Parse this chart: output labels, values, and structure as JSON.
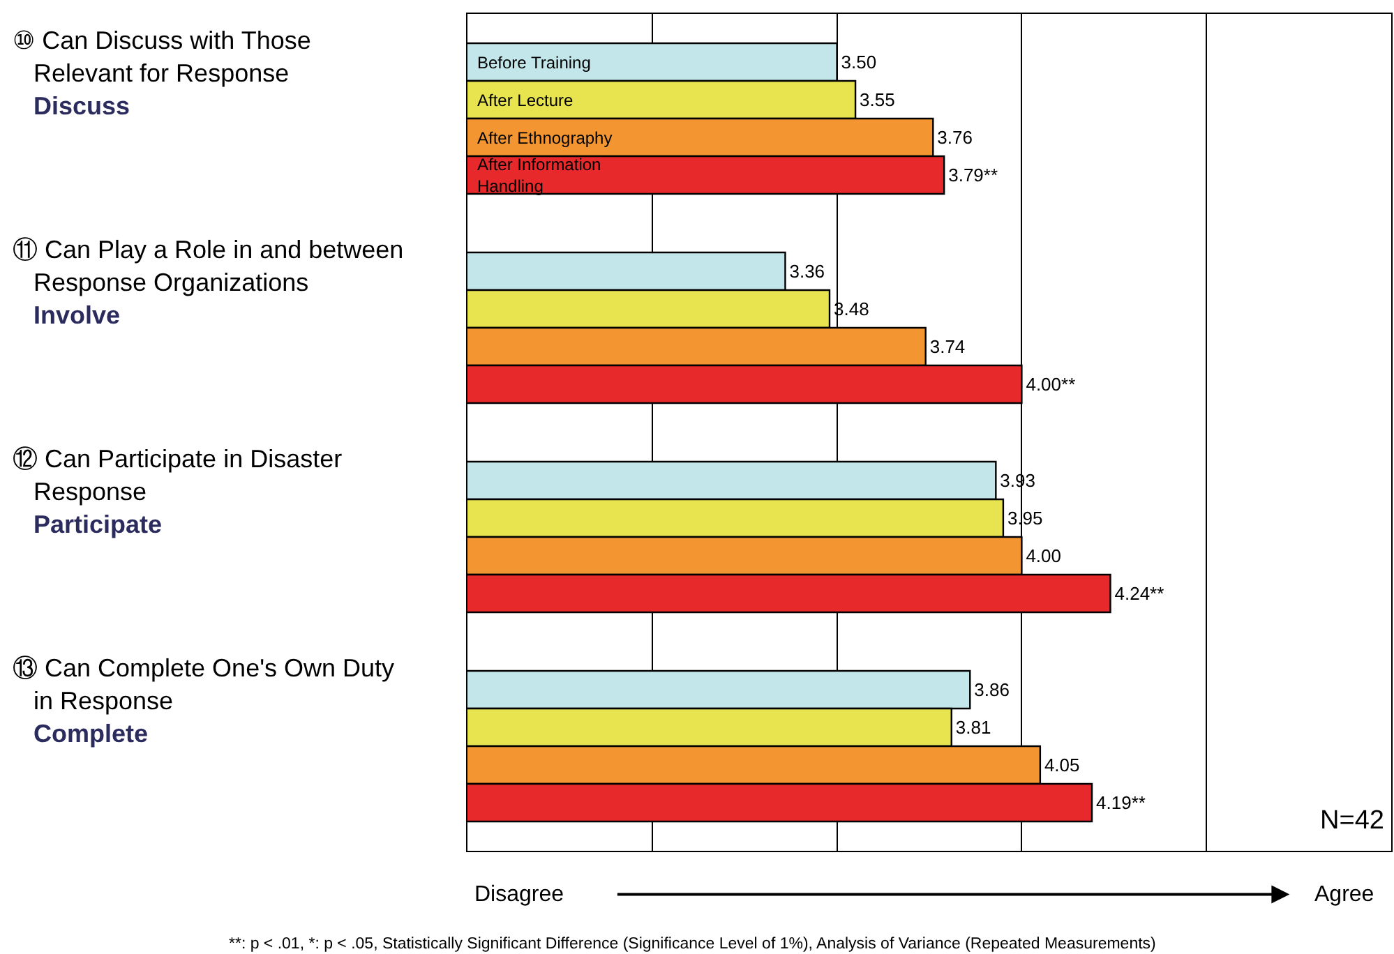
{
  "chart_data": {
    "type": "bar",
    "orientation": "horizontal",
    "categories": [
      "⑩ Can Discuss with Those\nRelevant for Response\nDiscuss",
      "⑪ Can Play a Role in and between\nResponse Organizations\nInvolve",
      "⑫ Can Participate in Disaster\nResponse\nParticipate",
      "⑬ Can Complete One's Own Duty\nin Response\nComplete"
    ],
    "series": [
      {
        "name": "Before Training",
        "color": "#c2e6ea",
        "values": [
          3.5,
          3.36,
          3.93,
          3.86
        ],
        "value_labels": [
          "3.50",
          "3.36",
          "3.93",
          "3.86"
        ]
      },
      {
        "name": "After Lecture",
        "color": "#e8e450",
        "values": [
          3.55,
          3.48,
          3.95,
          3.81
        ],
        "value_labels": [
          "3.55",
          "3.48",
          "3.95",
          "3.81"
        ]
      },
      {
        "name": "After Ethnography",
        "color": "#f39632",
        "values": [
          3.76,
          3.74,
          4.0,
          4.05
        ],
        "value_labels": [
          "3.76",
          "3.74",
          "4.00",
          "4.05"
        ]
      },
      {
        "name": "After Information Handling",
        "color": "#e8292b",
        "values": [
          3.79,
          4.0,
          4.24,
          4.19
        ],
        "value_labels": [
          "3.79**",
          "4.00**",
          "4.24**",
          "4.19**"
        ]
      }
    ],
    "xlim": [
      2.5,
      5
    ],
    "xticks": [
      {
        "value": 3,
        "label": null
      },
      {
        "value": 3.5,
        "label": null
      },
      {
        "value": 4,
        "label": null
      },
      {
        "value": 4.5,
        "label": null
      }
    ],
    "grid": "x",
    "legend": false,
    "annotations": [
      "N=42",
      "Disagree",
      "Agree",
      "**: p < .01, *: p < .05, Statistically Significant Difference (Significance Level of 1%), Analysis of Variance (Repeated Measurements)"
    ]
  }
}
